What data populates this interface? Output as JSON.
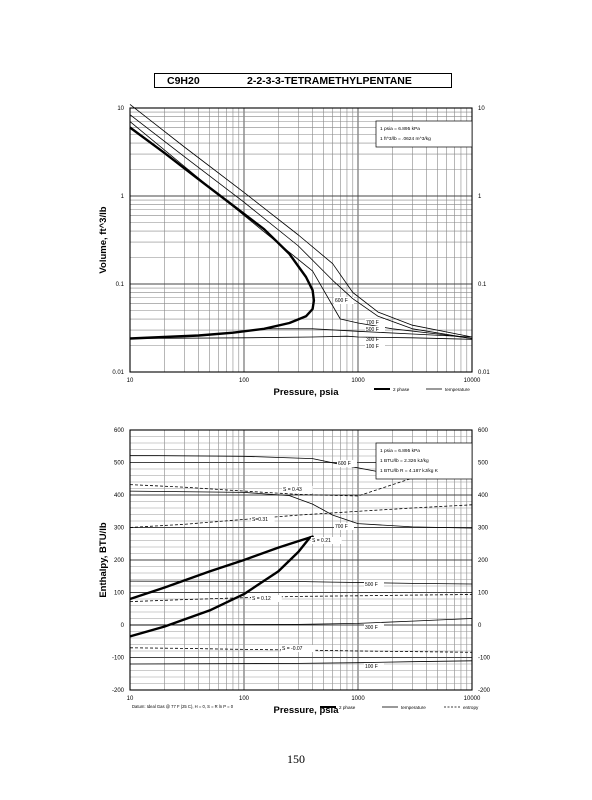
{
  "header": {
    "formula": "C9H20",
    "compound": "2-2-3-3-TETRAMETHYLPENTANE"
  },
  "page_number": "150",
  "chart_data": [
    {
      "type": "line",
      "title": "",
      "xlabel": "Pressure,  psia",
      "ylabel": "Volume, ft^3/lb",
      "x_scale": "log",
      "y_scale": "log",
      "xlim": [
        10,
        10000
      ],
      "ylim": [
        0.01,
        10
      ],
      "grid": true,
      "x_ticks": [
        "10",
        "100",
        "1000",
        "10000"
      ],
      "y_ticks_left": [
        "0.01",
        "0.1",
        "1",
        "10"
      ],
      "y_ticks_right": [
        "0.01",
        "0.1",
        "1",
        "10"
      ],
      "notes": [
        "1 psia = 6.895 kPa",
        "1 ft^3/lb = .0624 m^3/kg"
      ],
      "legend": [
        {
          "label": "2 phase",
          "style": "thick"
        },
        {
          "label": "temperature",
          "style": "thin"
        }
      ],
      "series": [
        {
          "name": "2 phase",
          "style": "thick",
          "x": [
            10,
            20,
            40,
            80,
            150,
            250,
            350,
            400,
            410,
            400,
            350,
            250,
            150,
            80,
            40,
            20,
            10
          ],
          "y": [
            6.0,
            3.1,
            1.55,
            0.78,
            0.42,
            0.22,
            0.12,
            0.085,
            0.065,
            0.052,
            0.043,
            0.036,
            0.031,
            0.028,
            0.026,
            0.025,
            0.024
          ]
        },
        {
          "name": "",
          "label": "600 F",
          "style": "thin",
          "x": [
            10,
            30,
            100,
            300,
            600,
            900,
            1500,
            3000,
            10000
          ],
          "y": [
            11,
            3.6,
            1.1,
            0.36,
            0.17,
            0.08,
            0.048,
            0.034,
            0.025
          ]
        },
        {
          "name": "",
          "label": "700 F",
          "style": "thin",
          "x": [
            10,
            30,
            100,
            300,
            600,
            900,
            1500,
            3000,
            10000
          ],
          "y": [
            8.4,
            2.8,
            0.85,
            0.27,
            0.11,
            0.068,
            0.043,
            0.031,
            0.024
          ]
        },
        {
          "name": "",
          "label": "500 F",
          "style": "thin",
          "x": [
            10,
            100,
            400,
            700,
            1000,
            2000,
            5000,
            10000
          ],
          "y": [
            7.0,
            0.6,
            0.14,
            0.04,
            0.036,
            0.031,
            0.027,
            0.024
          ]
        },
        {
          "name": "",
          "label": "300 F",
          "style": "thin",
          "x": [
            150,
            400,
            800,
            1000,
            3000,
            10000
          ],
          "y": [
            0.031,
            0.031,
            0.0295,
            0.029,
            0.027,
            0.025
          ]
        },
        {
          "name": "",
          "label": "100 F",
          "style": "thin",
          "x": [
            10,
            100,
            400,
            800,
            1000,
            3000,
            10000
          ],
          "y": [
            0.024,
            0.0245,
            0.025,
            0.0255,
            0.025,
            0.0245,
            0.0235
          ]
        }
      ]
    },
    {
      "type": "line",
      "title": "",
      "xlabel": "Pressure,  psia",
      "ylabel": "Enthalpy, BTU/lb",
      "x_scale": "log",
      "xlim": [
        10,
        10000
      ],
      "ylim": [
        -200,
        600
      ],
      "grid": true,
      "x_ticks": [
        "10",
        "100",
        "1000",
        "10000"
      ],
      "y_ticks": [
        "-200",
        "-100",
        "0",
        "100",
        "200",
        "300",
        "400",
        "500",
        "600"
      ],
      "notes": [
        "1 psia = 6.895 kPa",
        "1 BTU/lb = 2.326 kJ/kg",
        "1 BTU/lb R = 4.187 kJ/kg K"
      ],
      "footnote": "Datum: Ideal Gas @ 77 F (25 C), H = 0, S = R ln P = 0",
      "legend": [
        {
          "label": "2 phase",
          "style": "thick"
        },
        {
          "label": "temperature",
          "style": "thin"
        },
        {
          "label": "entropy",
          "style": "dashed"
        }
      ],
      "series": [
        {
          "name": "2 phase",
          "style": "thick",
          "x": [
            10,
            20,
            50,
            100,
            200,
            300,
            380,
            400,
            300,
            200,
            100,
            50,
            20,
            10
          ],
          "y": [
            -35,
            -5,
            45,
            95,
            165,
            225,
            270,
            272,
            258,
            238,
            200,
            165,
            115,
            80
          ]
        },
        {
          "name": "",
          "label": "600 F",
          "style": "thin",
          "x": [
            10,
            100,
            400,
            800,
            1500,
            3000,
            10000
          ],
          "y": [
            522,
            519,
            512,
            490,
            472,
            468,
            466
          ]
        },
        {
          "name": "",
          "label": "700 F",
          "style": "thin",
          "x": [
            10,
            100,
            250,
            400,
            600,
            1000,
            3000,
            10000
          ],
          "y": [
            412,
            408,
            398,
            372,
            338,
            312,
            302,
            298
          ]
        },
        {
          "name": "",
          "label": "500 F",
          "style": "thin",
          "x": [
            10,
            300,
            600,
            1500,
            3000,
            10000
          ],
          "y": [
            135,
            134,
            132,
            130,
            128,
            126
          ]
        },
        {
          "name": "",
          "label": "300 F",
          "style": "thin",
          "x": [
            10,
            300,
            1000,
            3000,
            10000
          ],
          "y": [
            0,
            2,
            5,
            12,
            20
          ]
        },
        {
          "name": "",
          "label": "100 F",
          "style": "thin",
          "x": [
            10,
            300,
            1000,
            3000,
            10000
          ],
          "y": [
            -120,
            -118,
            -116,
            -113,
            -110
          ]
        },
        {
          "name": "",
          "label": "S = 0.43",
          "style": "dashed",
          "x": [
            10,
            30,
            100,
            300,
            1000,
            3000,
            10000
          ],
          "y": [
            432,
            424,
            412,
            402,
            397,
            452,
            468
          ]
        },
        {
          "name": "",
          "label": "S=0.31",
          "style": "dashed",
          "x": [
            10,
            30,
            100,
            300,
            1000,
            3000,
            10000
          ],
          "y": [
            300,
            310,
            325,
            338,
            350,
            360,
            370
          ]
        },
        {
          "name": "",
          "label": "S = 0.12",
          "style": "dashed",
          "x": [
            10,
            30,
            100,
            300,
            1000,
            3000,
            10000
          ],
          "y": [
            72,
            78,
            84,
            88,
            90,
            92,
            94
          ]
        },
        {
          "name": "",
          "label": "S = -0.07",
          "style": "dashed",
          "x": [
            10,
            30,
            100,
            300,
            1000,
            3000,
            10000
          ],
          "y": [
            -70,
            -72,
            -75,
            -77,
            -80,
            -82,
            -84
          ]
        }
      ],
      "annotations": [
        "S = 0.21"
      ]
    }
  ]
}
